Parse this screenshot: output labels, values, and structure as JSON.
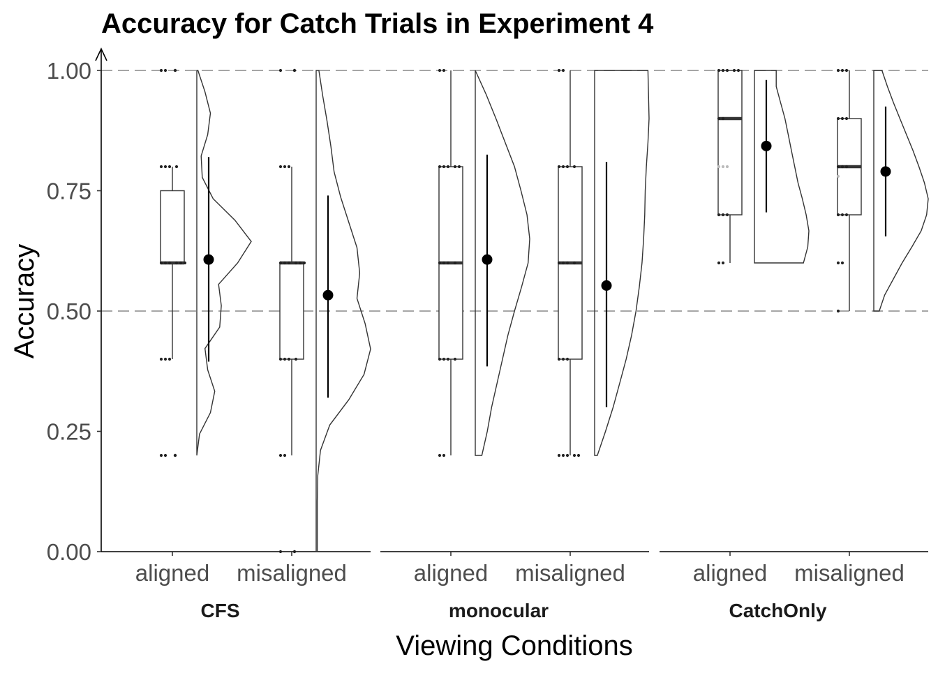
{
  "chart_data": {
    "type": "raincloud",
    "title": "Accuracy for Catch Trials in Experiment 4",
    "xlabel": "Viewing Conditions",
    "ylabel": "Accuracy",
    "ylim": [
      0,
      1
    ],
    "y_ticks": [
      "0.00",
      "0.25",
      "0.50",
      "0.75",
      "1.00"
    ],
    "y_tick_values": [
      0,
      0.25,
      0.5,
      0.75,
      1.0
    ],
    "reference_lines": [
      0.5,
      1.0
    ],
    "facets": [
      {
        "label": "CFS",
        "groups": [
          {
            "label": "aligned",
            "box": {
              "min": 0.4,
              "q1": 0.6,
              "median": 0.6,
              "q3": 0.75,
              "max": 0.8
            },
            "outliers": [
              0.2,
              1.0
            ],
            "mean": 0.607,
            "ci": [
              0.395,
              0.82
            ],
            "points": [
              0.2,
              0.2,
              0.4,
              0.4,
              0.4,
              0.6,
              0.6,
              0.6,
              0.6,
              0.6,
              0.6,
              0.8,
              0.8,
              0.8,
              0.8,
              1.0,
              1.0
            ],
            "density": {
              "min": 0.2,
              "max": 1.0,
              "width": [
                0.02,
                0.15,
                0.25,
                0.2,
                0.08,
                0.1,
                0.3,
                0.7,
                1.0,
                0.75,
                0.4,
                0.45,
                0.42,
                0.15,
                0.2,
                0.33,
                0.25,
                0.05,
                0.0
              ]
            }
          },
          {
            "label": "misaligned",
            "box": {
              "min": 0.2,
              "q1": 0.4,
              "median": 0.6,
              "q3": 0.6,
              "max": 0.8
            },
            "outliers": [
              0.0,
              1.0
            ],
            "mean": 0.533,
            "ci": [
              0.32,
              0.74
            ],
            "points": [
              0.0,
              0.2,
              0.2,
              0.4,
              0.4,
              0.4,
              0.4,
              0.6,
              0.6,
              0.6,
              0.6,
              0.6,
              0.6,
              0.8,
              0.8,
              0.8,
              1.0
            ],
            "density": {
              "min": 0.0,
              "max": 1.0,
              "width": [
                0.05,
                0.12,
                0.2,
                0.27,
                0.33,
                0.45,
                0.6,
                0.75,
                0.8,
                0.75,
                0.9,
                1.0,
                0.88,
                0.6,
                0.25,
                0.08,
                0.03,
                0.02,
                0.02,
                0.02
              ]
            }
          }
        ]
      },
      {
        "label": "monocular",
        "groups": [
          {
            "label": "aligned",
            "box": {
              "min": 0.2,
              "q1": 0.4,
              "median": 0.6,
              "q3": 0.8,
              "max": 1.0
            },
            "outliers": [],
            "mean": 0.607,
            "ci": [
              0.385,
              0.825
            ],
            "points": [
              0.2,
              0.2,
              0.4,
              0.4,
              0.4,
              0.4,
              0.6,
              0.6,
              0.6,
              0.6,
              0.8,
              0.8,
              0.8,
              0.8,
              0.8,
              1.0,
              1.0
            ],
            "density": {
              "min": 0.2,
              "max": 1.0,
              "width": [
                0.0,
                0.2,
                0.38,
                0.55,
                0.72,
                0.84,
                0.95,
                1.0,
                0.97,
                0.85,
                0.72,
                0.6,
                0.5,
                0.4,
                0.3,
                0.22,
                0.12
              ]
            }
          },
          {
            "label": "misaligned",
            "box": {
              "min": 0.2,
              "q1": 0.4,
              "median": 0.6,
              "q3": 0.8,
              "max": 1.0
            },
            "outliers": [],
            "mean": 0.553,
            "ci": [
              0.3,
              0.81
            ],
            "points": [
              0.2,
              0.2,
              0.2,
              0.2,
              0.2,
              0.4,
              0.4,
              0.4,
              0.6,
              0.6,
              0.6,
              0.6,
              0.8,
              0.8,
              0.8,
              0.8,
              1.0,
              1.0
            ],
            "density": {
              "min": 0.2,
              "max": 1.0,
              "width": [
                0.98,
                0.99,
                1.0,
                0.98,
                0.95,
                0.93,
                0.92,
                0.9,
                0.87,
                0.82,
                0.76,
                0.68,
                0.58,
                0.46,
                0.34,
                0.2,
                0.05
              ]
            }
          }
        ]
      },
      {
        "label": "CatchOnly",
        "groups": [
          {
            "label": "aligned",
            "box": {
              "min": 0.6,
              "q1": 0.7,
              "median": 0.9,
              "q3": 1.0,
              "max": 1.0
            },
            "outliers": [],
            "mean": 0.843,
            "ci": [
              0.705,
              0.98
            ],
            "points": [
              0.6,
              0.6,
              0.7,
              0.7,
              0.7,
              0.8,
              0.8,
              0.8,
              0.9,
              0.9,
              1.0,
              1.0,
              1.0,
              1.0,
              1.0
            ],
            "density": {
              "min": 0.6,
              "max": 1.0,
              "width": [
                0.4,
                0.4,
                0.48,
                0.56,
                0.62,
                0.68,
                0.74,
                0.8,
                0.88,
                0.95,
                1.0,
                0.98,
                0.9
              ]
            }
          },
          {
            "label": "misaligned",
            "box": {
              "min": 0.5,
              "q1": 0.7,
              "median": 0.8,
              "q3": 0.9,
              "max": 1.0
            },
            "outliers": [],
            "mean": 0.79,
            "ci": [
              0.655,
              0.925
            ],
            "points": [
              0.5,
              0.6,
              0.6,
              0.7,
              0.7,
              0.7,
              0.78,
              0.8,
              0.8,
              0.8,
              0.9,
              0.9,
              0.9,
              1.0,
              1.0,
              1.0
            ],
            "density": {
              "min": 0.5,
              "max": 1.0,
              "width": [
                0.15,
                0.25,
                0.36,
                0.48,
                0.6,
                0.72,
                0.83,
                0.93,
                1.0,
                0.97,
                0.87,
                0.7,
                0.52,
                0.36,
                0.2,
                0.1
              ]
            }
          }
        ]
      }
    ]
  }
}
